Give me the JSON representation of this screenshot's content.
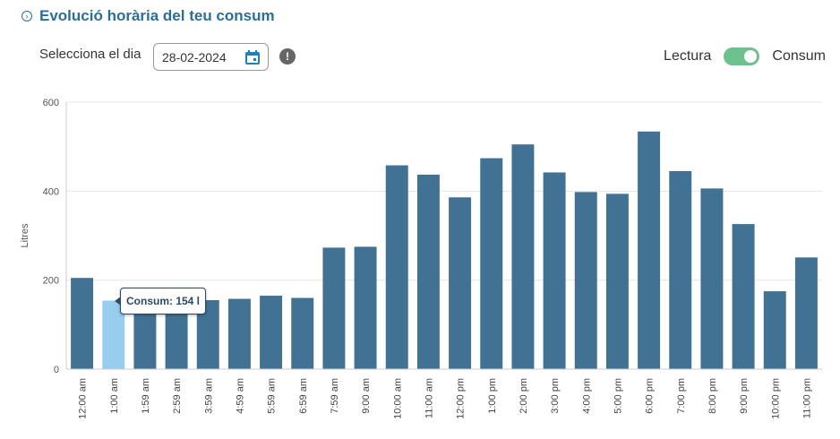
{
  "header": {
    "title": "Evolució horària del teu consum"
  },
  "date_picker": {
    "label": "Selecciona el dia",
    "value": "28-02-2024"
  },
  "toggle": {
    "left_label": "Lectura",
    "right_label": "Consum",
    "state": "on"
  },
  "tooltip": {
    "text": "Consum: 154 l"
  },
  "colors": {
    "bar": "#417294",
    "highlight": "#97cdee",
    "accent": "#2a6f97",
    "toggle": "#6cc18c"
  },
  "chart_data": {
    "type": "bar",
    "ylabel": "Litres",
    "ylim": [
      0,
      600
    ],
    "yticks": [
      0,
      200,
      400,
      600
    ],
    "grid": true,
    "highlight_index": 1,
    "categories": [
      "12:00 am",
      "1:00 am",
      "1:59 am",
      "2:59 am",
      "3:59 am",
      "4:59 am",
      "5:59 am",
      "6:59 am",
      "7:59 am",
      "9:00 am",
      "10:00 am",
      "11:00 am",
      "12:00 pm",
      "1:00 pm",
      "2:00 pm",
      "3:00 pm",
      "4:00 pm",
      "5:00 pm",
      "6:00 pm",
      "7:00 pm",
      "8:00 pm",
      "9:00 pm",
      "10:00 pm",
      "11:00 pm"
    ],
    "values": [
      205,
      154,
      125,
      125,
      155,
      158,
      165,
      160,
      273,
      275,
      458,
      437,
      386,
      474,
      505,
      442,
      398,
      394,
      534,
      445,
      406,
      326,
      175,
      251
    ]
  }
}
